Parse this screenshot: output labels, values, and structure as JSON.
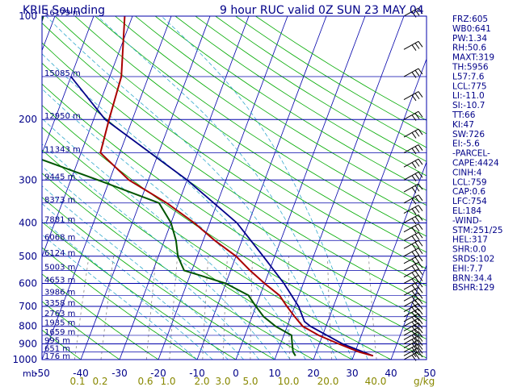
{
  "title_left": "KRIE Sounding",
  "title_right": "9 hour RUC valid 0Z SUN 23 MAY 04",
  "chart_data": {
    "type": "skew-t",
    "pressure_levels": [
      100,
      200,
      300,
      400,
      500,
      600,
      700,
      800,
      900,
      1000
    ],
    "pressure_unit": "mb",
    "temperature_ticks": [
      -50,
      -40,
      -30,
      -20,
      -10,
      0,
      10,
      20,
      30,
      40,
      50
    ],
    "temperature_unit": "C",
    "mixing_ratio_ticks": [
      "0.1",
      "0.2",
      "0.6",
      "1.0",
      "2.0",
      "3.0",
      "5.0",
      "10.0",
      "20.0",
      "40.0"
    ],
    "mixing_ratio_unit": "g/kg",
    "height_labels": [
      {
        "p": 100,
        "label": "16179 m"
      },
      {
        "p": 150,
        "label": "15085 m"
      },
      {
        "p": 200,
        "label": "12950 m"
      },
      {
        "p": 250,
        "label": "11343 m"
      },
      {
        "p": 300,
        "label": "9445 m"
      },
      {
        "p": 350,
        "label": "8373 m"
      },
      {
        "p": 400,
        "label": "7881 m"
      },
      {
        "p": 450,
        "label": "6068 m"
      },
      {
        "p": 500,
        "label": "6124 m"
      },
      {
        "p": 550,
        "label": "5003 m"
      },
      {
        "p": 600,
        "label": "4653 m"
      },
      {
        "p": 650,
        "label": "3986 m"
      },
      {
        "p": 700,
        "label": "3358 m"
      },
      {
        "p": 750,
        "label": "2763 m"
      },
      {
        "p": 800,
        "label": "1935 m"
      },
      {
        "p": 850,
        "label": "1659 m"
      },
      {
        "p": 900,
        "label": "995 m"
      },
      {
        "p": 950,
        "label": "651 m"
      },
      {
        "p": 1000,
        "label": "176 m"
      }
    ],
    "temperature_profile": [
      {
        "p": 975,
        "t": 35
      },
      {
        "p": 950,
        "t": 31
      },
      {
        "p": 900,
        "t": 25
      },
      {
        "p": 850,
        "t": 19
      },
      {
        "p": 800,
        "t": 14
      },
      {
        "p": 750,
        "t": 11
      },
      {
        "p": 700,
        "t": 8
      },
      {
        "p": 650,
        "t": 5
      },
      {
        "p": 600,
        "t": 0
      },
      {
        "p": 550,
        "t": -5
      },
      {
        "p": 500,
        "t": -10
      },
      {
        "p": 450,
        "t": -17
      },
      {
        "p": 400,
        "t": -24
      },
      {
        "p": 350,
        "t": -33
      },
      {
        "p": 300,
        "t": -45
      },
      {
        "p": 250,
        "t": -55
      },
      {
        "p": 200,
        "t": -56
      },
      {
        "p": 150,
        "t": -57
      },
      {
        "p": 100,
        "t": -62
      }
    ],
    "dewpoint_profile": [
      {
        "p": 975,
        "t": 15
      },
      {
        "p": 950,
        "t": 14
      },
      {
        "p": 900,
        "t": 13
      },
      {
        "p": 850,
        "t": 12
      },
      {
        "p": 800,
        "t": 7
      },
      {
        "p": 750,
        "t": 3
      },
      {
        "p": 700,
        "t": 0
      },
      {
        "p": 650,
        "t": -3
      },
      {
        "p": 600,
        "t": -10
      },
      {
        "p": 550,
        "t": -22
      },
      {
        "p": 500,
        "t": -25
      },
      {
        "p": 450,
        "t": -27
      },
      {
        "p": 400,
        "t": -30
      },
      {
        "p": 350,
        "t": -35
      },
      {
        "p": 300,
        "t": -53
      },
      {
        "p": 250,
        "t": -75
      },
      {
        "p": 200,
        "t": -80
      },
      {
        "p": 150,
        "t": -82
      },
      {
        "p": 100,
        "t": -83
      }
    ],
    "parcel_profile": [
      {
        "p": 975,
        "t": 35
      },
      {
        "p": 900,
        "t": 26
      },
      {
        "p": 800,
        "t": 16
      },
      {
        "p": 775,
        "t": 14
      },
      {
        "p": 700,
        "t": 11
      },
      {
        "p": 600,
        "t": 5
      },
      {
        "p": 500,
        "t": -3
      },
      {
        "p": 400,
        "t": -13
      },
      {
        "p": 300,
        "t": -30
      },
      {
        "p": 200,
        "t": -57
      },
      {
        "p": 150,
        "t": -70
      }
    ],
    "wind_barb_levels": [
      100,
      125,
      150,
      175,
      200,
      225,
      250,
      275,
      300,
      325,
      350,
      375,
      400,
      425,
      450,
      475,
      500,
      525,
      550,
      575,
      600,
      625,
      650,
      675,
      700,
      725,
      750,
      775,
      800,
      825,
      850,
      875,
      900,
      925,
      950,
      975,
      1000
    ]
  },
  "indices": [
    "FRZ:605",
    "WB0:641",
    "PW:1.34",
    "RH:50.6",
    "MAXT:319",
    "TH:5956",
    "L57:7.6",
    "LCL:775",
    "LI:-11.0",
    "SI:-10.7",
    "TT:66",
    "KI:47",
    "SW:726",
    "EI:-5.6",
    "-PARCEL-",
    "CAPE:4424",
    "CINH:4",
    "LCL:759",
    "CAP:0.6",
    "LFC:754",
    "EL:184",
    "-WIND-",
    "STM:251/25",
    "HEL:317",
    "SHR:0.0",
    "SRDS:102",
    "EHI:7.7",
    "BRN:34.4",
    "BSHR:129"
  ],
  "colors": {
    "isobar": "#0000aa",
    "isotherm": "#0000aa",
    "dry_adiabat": "#00aa00",
    "moist_adiabat": "#33aacc",
    "mixing_ratio": "#888888",
    "temperature": "#aa0000",
    "dewpoint": "#005500",
    "parcel": "#000088",
    "barb": "#000000",
    "mixing_label": "#888800",
    "text": "#000088"
  }
}
